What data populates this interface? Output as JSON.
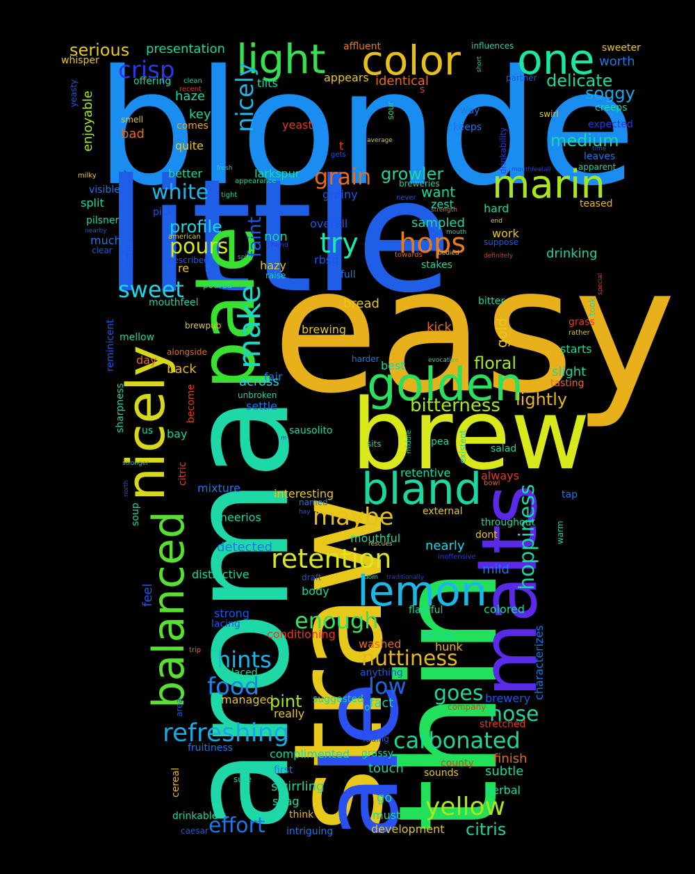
{
  "words": {
    "blonde": {
      "text": "blonde",
      "color": "#1a8ef0"
    },
    "little": {
      "text": "little",
      "color": "#1f5fe8"
    },
    "easy": {
      "text": "easy",
      "color": "#e8b01a"
    },
    "aroma": {
      "text": "aroma",
      "color": "#1fd8a8"
    },
    "straw": {
      "text": "straw",
      "color": "#e8c81a"
    },
    "thin": {
      "text": "thin",
      "color": "#22e05a"
    },
    "ale": {
      "text": "ale",
      "color": "#2a50f0"
    },
    "brew": {
      "text": "brew",
      "color": "#d8e81a"
    },
    "malts": {
      "text": "malts",
      "color": "#5a2ae8"
    },
    "pale": {
      "text": "pale",
      "color": "#38e030"
    },
    "nicely": {
      "text": "nicely",
      "color": "#d8d81a"
    },
    "balanced": {
      "text": "balanced",
      "color": "#58e030"
    },
    "golden": {
      "text": "golden",
      "color": "#2ae060"
    },
    "bland": {
      "text": "bland",
      "color": "#1ad8a0"
    },
    "lemon": {
      "text": "lemon",
      "color": "#1ab8e8"
    },
    "color": {
      "text": "color",
      "color": "#e8c01a"
    },
    "light": {
      "text": "light",
      "color": "#38e050"
    },
    "one": {
      "text": "one",
      "color": "#1ae8a0"
    },
    "marin": {
      "text": "marin",
      "color": "#a8e81a"
    },
    "hops": {
      "text": "hops",
      "color": "#e87a1a"
    },
    "try": {
      "text": "try",
      "color": "#1ae8b0"
    },
    "retention": {
      "text": "retention",
      "color": "#d8e81a"
    },
    "maybe": {
      "text": "maybe",
      "color": "#e8c01a"
    },
    "refreshing": {
      "text": "refreshing",
      "color": "#1aa8e8"
    },
    "carbonated": {
      "text": "carbonated",
      "color": "#1ad898"
    },
    "yellow": {
      "text": "yellow",
      "color": "#a8e81a"
    },
    "enough": {
      "text": "enough",
      "color": "#38e060"
    },
    "nuttiness": {
      "text": "nuttiness",
      "color": "#e8b81a"
    },
    "hoppiness": {
      "text": "hoppiness",
      "color": "#1ad8a0"
    },
    "make": {
      "text": "make",
      "color": "#1ad8c8"
    },
    "crisp": {
      "text": "crisp",
      "color": "#2a38e8"
    },
    "white": {
      "text": "white",
      "color": "#1ab8e8"
    },
    "pours": {
      "text": "pours",
      "color": "#d8e81a"
    },
    "sweet": {
      "text": "sweet",
      "color": "#1ad8e8"
    },
    "hints": {
      "text": "hints",
      "color": "#1ab8e8"
    },
    "food": {
      "text": "food",
      "color": "#1a88e8"
    },
    "effort": {
      "text": "effort",
      "color": "#1a78e8"
    },
    "nose": {
      "text": "nose",
      "color": "#1ad8a0"
    },
    "goes": {
      "text": "goes",
      "color": "#1ad8a0"
    },
    "low": {
      "text": "low",
      "color": "#1a68e8"
    },
    "grain": {
      "text": "grain",
      "color": "#e86a1a"
    },
    "growler": {
      "text": "growler",
      "color": "#1ad8a0"
    },
    "profile": {
      "text": "profile",
      "color": "#1ad8e8"
    },
    "serious": {
      "text": "serious",
      "color": "#e8c81a"
    },
    "presentation": {
      "text": "presentation",
      "color": "#1ad8a0"
    },
    "delicate": {
      "text": "delicate",
      "color": "#1ad8a0"
    },
    "soggy": {
      "text": "soggy",
      "color": "#1aa8e8"
    },
    "medium": {
      "text": "medium",
      "color": "#1ad8a0"
    },
    "worth": {
      "text": "worth",
      "color": "#1a78e8"
    },
    "faint": {
      "text": "faint",
      "color": "#1a58e8"
    },
    "bitterness": {
      "text": "bitterness",
      "color": "#a8e81a"
    },
    "lightly": {
      "text": "lightly",
      "color": "#e8b81a"
    },
    "floral": {
      "text": "floral",
      "color": "#a8e81a"
    },
    "citris": {
      "text": "citris",
      "color": "#1ad8a0"
    },
    "pint": {
      "text": "pint",
      "color": "#a8e81a"
    },
    "identical": {
      "text": "identical",
      "color": "#e86a1a"
    },
    "appears": {
      "text": "appears",
      "color": "#e8c81a"
    },
    "affluent": {
      "text": "affluent",
      "color": "#e87a1a"
    },
    "influences": {
      "text": "influences",
      "color": "#1ad8a0"
    },
    "sweeter": {
      "text": "sweeter",
      "color": "#e8c81a"
    },
    "whisper": {
      "text": "whisper",
      "color": "#e8c81a"
    },
    "offering": {
      "text": "offering",
      "color": "#1ad8a0"
    },
    "clean": {
      "text": "clean",
      "color": "#1ad8a0"
    },
    "recent": {
      "text": "recent",
      "color": "#e83a1a"
    },
    "haze": {
      "text": "haze",
      "color": "#1ad8a0"
    },
    "tilts": {
      "text": "tilts",
      "color": "#1ad8a0"
    },
    "partner": {
      "text": "partner",
      "color": "#1a58e8"
    },
    "creeps": {
      "text": "creeps",
      "color": "#1ad8a0"
    },
    "expected": {
      "text": "expected",
      "color": "#2a38e8"
    },
    "enjoyable": {
      "text": "enjoyable",
      "color": "#a8e81a"
    },
    "yeasty": {
      "text": "yeasty",
      "color": "#1a58e8"
    },
    "key": {
      "text": "key",
      "color": "#1ad8a0"
    },
    "smell": {
      "text": "smell",
      "color": "#e8c81a"
    },
    "comes": {
      "text": "comes",
      "color": "#e8a81a"
    },
    "bad": {
      "text": "bad",
      "color": "#e86a1a"
    },
    "yeast": {
      "text": "yeast",
      "color": "#e83a1a"
    },
    "quite": {
      "text": "quite",
      "color": "#e8c81a"
    },
    "way": {
      "text": "way",
      "color": "#1a78e8"
    },
    "swirl": {
      "text": "swirl",
      "color": "#e8c81a"
    },
    "keeps": {
      "text": "keeps",
      "color": "#1a78e8"
    },
    "leaves": {
      "text": "leaves",
      "color": "#1a78e8"
    },
    "apparent": {
      "text": "apparent",
      "color": "#1ad8a0"
    },
    "teased": {
      "text": "teased",
      "color": "#e8b81a"
    },
    "better": {
      "text": "better",
      "color": "#1ad8a0"
    },
    "larkspur": {
      "text": "larkspur",
      "color": "#1ad8a0"
    },
    "grainy": {
      "text": "grainy",
      "color": "#1a58e8"
    },
    "breweries": {
      "text": "breweries",
      "color": "#1ad8a0"
    },
    "want": {
      "text": "want",
      "color": "#1ad8a0"
    },
    "zest": {
      "text": "zest",
      "color": "#1ad8a0"
    },
    "hard": {
      "text": "hard",
      "color": "#1ad8a0"
    },
    "split": {
      "text": "split",
      "color": "#1ad8a0"
    },
    "visible": {
      "text": "visible",
      "color": "#1a78e8"
    },
    "pilsner": {
      "text": "pilsner",
      "color": "#1ad8a0"
    },
    "pick": {
      "text": "pick",
      "color": "#1a58e8"
    },
    "much": {
      "text": "much",
      "color": "#1a78e8"
    },
    "clear": {
      "text": "clear",
      "color": "#1a58e8"
    },
    "overall": {
      "text": "overall",
      "color": "#1a58e8"
    },
    "sampled": {
      "text": "sampled",
      "color": "#1ad8a0"
    },
    "work": {
      "text": "work",
      "color": "#e8c81a"
    },
    "suppose": {
      "text": "suppose",
      "color": "#1a58e8"
    },
    "drinking": {
      "text": "drinking",
      "color": "#1ad8a0"
    },
    "non": {
      "text": "non",
      "color": "#1ad8a0"
    },
    "hazy": {
      "text": "hazy",
      "color": "#e8c81a"
    },
    "rbsg": {
      "text": "rbsg",
      "color": "#1a58e8"
    },
    "stakes": {
      "text": "stakes",
      "color": "#1ad8a0"
    },
    "re": {
      "text": "re",
      "color": "#e8c81a"
    },
    "described": {
      "text": "described",
      "color": "#1a58e8"
    },
    "raise": {
      "text": "raise",
      "color": "#1ad8a0"
    },
    "full": {
      "text": "full",
      "color": "#1a78e8"
    },
    "poured": {
      "text": "poured",
      "color": "#1ad8a0"
    },
    "bread": {
      "text": "bread",
      "color": "#e8c81a"
    },
    "bitter": {
      "text": "bitter",
      "color": "#1ad8a0"
    },
    "mouthfeel": {
      "text": "mouthfeel",
      "color": "#1ad8a0"
    },
    "brewpub": {
      "text": "brewpub",
      "color": "#e8c81a"
    },
    "brewing": {
      "text": "brewing",
      "color": "#e8c81a"
    },
    "kick": {
      "text": "kick",
      "color": "#e86a1a"
    },
    "gold": {
      "text": "gold",
      "color": "#e8c81a"
    },
    "grass": {
      "text": "grass",
      "color": "#e83a1a"
    },
    "starts": {
      "text": "starts",
      "color": "#1ad8a0"
    },
    "mellow": {
      "text": "mellow",
      "color": "#1ad8a0"
    },
    "alongside": {
      "text": "alongside",
      "color": "#e86a1a"
    },
    "day": {
      "text": "day",
      "color": "#e86a1a"
    },
    "back": {
      "text": "back",
      "color": "#e8b81a"
    },
    "fair": {
      "text": "fair",
      "color": "#1a78e8"
    },
    "across": {
      "text": "across",
      "color": "#1ad8e8"
    },
    "unbroken": {
      "text": "unbroken",
      "color": "#1ad8a0"
    },
    "settle": {
      "text": "settle",
      "color": "#1a78e8"
    },
    "harder": {
      "text": "harder",
      "color": "#1a78e8"
    },
    "best": {
      "text": "best",
      "color": "#1ad8a0"
    },
    "slight": {
      "text": "slight",
      "color": "#1ad8a0"
    },
    "tasting": {
      "text": "tasting",
      "color": "#e86a1a"
    },
    "sharpness": {
      "text": "sharpness",
      "color": "#1ad8a0"
    },
    "reminicent": {
      "text": "reminicent",
      "color": "#1a58e8"
    },
    "become": {
      "text": "become",
      "color": "#e83a1a"
    },
    "us": {
      "text": "us",
      "color": "#1ad8a0"
    },
    "bay": {
      "text": "bay",
      "color": "#1ad8a0"
    },
    "sausolito": {
      "text": "sausolito",
      "color": "#1ad8a0"
    },
    "sits": {
      "text": "sits",
      "color": "#1ad8a0"
    },
    "pea": {
      "text": "pea",
      "color": "#1ad8a0"
    },
    "salad": {
      "text": "salad",
      "color": "#1ad8a0"
    },
    "citric": {
      "text": "citric",
      "color": "#e83a1a"
    },
    "retentive": {
      "text": "retentive",
      "color": "#1ad8a0"
    },
    "always": {
      "text": "always",
      "color": "#e83a1a"
    },
    "mixture": {
      "text": "mixture",
      "color": "#1a78e8"
    },
    "interesting": {
      "text": "interesting",
      "color": "#e8c81a"
    },
    "named": {
      "text": "named",
      "color": "#1a78e8"
    },
    "external": {
      "text": "external",
      "color": "#e8c81a"
    },
    "throughout": {
      "text": "throughout",
      "color": "#1ad8a0"
    },
    "soup": {
      "text": "soup",
      "color": "#1ad8a0"
    },
    "cheerios": {
      "text": "cheerios",
      "color": "#1ad8a0"
    },
    "mouthful": {
      "text": "mouthful",
      "color": "#1ad8a0"
    },
    "dont": {
      "text": "dont",
      "color": "#e8c81a"
    },
    "nearly": {
      "text": "nearly",
      "color": "#1ad8e8"
    },
    "detected": {
      "text": "detected",
      "color": "#1a78e8"
    },
    "distinctive": {
      "text": "distinctive",
      "color": "#1ad8a0"
    },
    "mild": {
      "text": "mild",
      "color": "#1a78e8"
    },
    "body": {
      "text": "body",
      "color": "#1ad8a0"
    },
    "feel": {
      "text": "feel",
      "color": "#1a58e8"
    },
    "strong": {
      "text": "strong",
      "color": "#1a58e8"
    },
    "lacing": {
      "text": "lacing",
      "color": "#1a58e8"
    },
    "flaorful": {
      "text": "flaorful",
      "color": "#1ad8a0"
    },
    "colored": {
      "text": "colored",
      "color": "#1ad8a0"
    },
    "conditioning": {
      "text": "conditioning",
      "color": "#e83a1a"
    },
    "almost": {
      "text": "almost",
      "color": "#1ad8a0"
    },
    "washed": {
      "text": "washed",
      "color": "#e86a1a"
    },
    "hunk": {
      "text": "hunk",
      "color": "#e8b81a"
    },
    "characterizes": {
      "text": "characterizes",
      "color": "#1a78e8"
    },
    "anything": {
      "text": "anything",
      "color": "#1a58e8"
    },
    "placed": {
      "text": "placed",
      "color": "#1ad8a0"
    },
    "managed": {
      "text": "managed",
      "color": "#e8c81a"
    },
    "suggested": {
      "text": "suggested",
      "color": "#1ad8a0"
    },
    "fact": {
      "text": "fact",
      "color": "#1ad8a0"
    },
    "brewery": {
      "text": "brewery",
      "color": "#1a58e8"
    },
    "company": {
      "text": "company",
      "color": "#e83a1a"
    },
    "really": {
      "text": "really",
      "color": "#e8c81a"
    },
    "stretched": {
      "text": "stretched",
      "color": "#e83a1a"
    },
    "fruitiness": {
      "text": "fruitiness",
      "color": "#1a78e8"
    },
    "complimented": {
      "text": "complimented",
      "color": "#1ad8a0"
    },
    "grassy": {
      "text": "grassy",
      "color": "#1ad8a0"
    },
    "county": {
      "text": "county",
      "color": "#e83a1a"
    },
    "finish": {
      "text": "finish",
      "color": "#e86a1a"
    },
    "touch": {
      "text": "touch",
      "color": "#1ad8a0"
    },
    "first": {
      "text": "first",
      "color": "#1a78e8"
    },
    "sounds": {
      "text": "sounds",
      "color": "#e8c81a"
    },
    "subtle": {
      "text": "subtle",
      "color": "#1ad8a0"
    },
    "swirrling": {
      "text": "swirrling",
      "color": "#1ad8a0"
    },
    "herbal": {
      "text": "herbal",
      "color": "#1ad8a0"
    },
    "go": {
      "text": "go",
      "color": "#1ad8a0"
    },
    "snag": {
      "text": "snag",
      "color": "#1ad8a0"
    },
    "must": {
      "text": "must",
      "color": "#1ad8a0"
    },
    "think": {
      "text": "think",
      "color": "#e8b81a"
    },
    "drinkable": {
      "text": "drinkable",
      "color": "#1ad8a0"
    },
    "intriguing": {
      "text": "intriguing",
      "color": "#1a78e8"
    },
    "development": {
      "text": "development",
      "color": "#e8c81a"
    },
    "cereal": {
      "text": "cereal",
      "color": "#e8b81a"
    },
    "area": {
      "text": "area",
      "color": "#1a58e8"
    },
    "sure": {
      "text": "sure",
      "color": "#1ad8a0"
    },
    "caesar": {
      "text": "caesar",
      "color": "#1a58e8"
    },
    "short": {
      "text": "short",
      "color": "#1ad8a0"
    },
    "s": {
      "text": "s",
      "color": "#e83a1a"
    },
    "t": {
      "text": "t",
      "color": "#e83a1a"
    },
    "gets": {
      "text": "gets",
      "color": "#1a58e8"
    },
    "sour": {
      "text": "sour",
      "color": "#1ad8a0"
    },
    "average": {
      "text": "average",
      "color": "#e8c81a"
    },
    "time": {
      "text": "time",
      "color": "#1a58e8"
    },
    "drinkability": {
      "text": "drinkability",
      "color": "#2a38e8"
    },
    "mouthfeelall": {
      "text": "mouthfeelall",
      "color": "#2a38e8"
    },
    "milky": {
      "text": "milky",
      "color": "#e8c81a"
    },
    "fresh": {
      "text": "fresh",
      "color": "#1ad8a0"
    },
    "appearance": {
      "text": "appearance",
      "color": "#1ad8a0"
    },
    "tight": {
      "text": "tight",
      "color": "#1ad8a0"
    },
    "never": {
      "text": "never",
      "color": "#1a58e8"
    },
    "strength": {
      "text": "strength",
      "color": "#e86a1a"
    },
    "end": {
      "text": "end",
      "color": "#e8c81a"
    },
    "american": {
      "text": "american",
      "color": "#e8c81a"
    },
    "hand": {
      "text": "hand",
      "color": "#2a38e8"
    },
    "mouth": {
      "text": "mouth",
      "color": "#1ad8a0"
    },
    "nearby": {
      "text": "nearby",
      "color": "#1a58e8"
    },
    "spicy": {
      "text": "spicy",
      "color": "#1ad8a0"
    },
    "towards": {
      "text": "towards",
      "color": "#e86a1a"
    },
    "bodied": {
      "text": "bodied",
      "color": "#e8c81a"
    },
    "definitely": {
      "text": "definitely",
      "color": "#e83a1a"
    },
    "special": {
      "text": "special",
      "color": "#e83a1a"
    },
    "took": {
      "text": "took",
      "color": "#1ad8a0"
    },
    "rather": {
      "text": "rather",
      "color": "#e8c81a"
    },
    "suffers": {
      "text": "suffers",
      "color": "#1a58e8"
    },
    "evocative": {
      "text": "evocative",
      "color": "#1ad8a0"
    },
    "middle": {
      "text": "middle",
      "color": "#1ad8a0"
    },
    "existent": {
      "text": "existent",
      "color": "#1ad8a0"
    },
    "m": {
      "text": "m",
      "color": "#2a38e8"
    },
    "stronger": {
      "text": "stronger",
      "color": "#1ad8a0"
    },
    "north": {
      "text": "north",
      "color": "#1a58e8"
    },
    "bowl": {
      "text": "bowl",
      "color": "#e86a1a"
    },
    "tap": {
      "text": "tap",
      "color": "#1a78e8"
    },
    "hay": {
      "text": "hay",
      "color": "#1a58e8"
    },
    "rescues": {
      "text": "rescues",
      "color": "#e8c81a"
    },
    "inoffensive": {
      "text": "inoffensive",
      "color": "#2a38e8"
    },
    "warm": {
      "text": "warm",
      "color": "#1ad8a0"
    },
    "dom": {
      "text": "dom",
      "color": "#1ad8a0"
    },
    "traditionally": {
      "text": "traditionally",
      "color": "#2a38e8"
    },
    "draft": {
      "text": "draft",
      "color": "#1a58e8"
    },
    "trip": {
      "text": "trip",
      "color": "#e86a1a"
    },
    "o": {
      "text": "o",
      "color": "#1ad8a0"
    },
    "fading": {
      "text": "fading",
      "color": "#1a58e8"
    }
  }
}
